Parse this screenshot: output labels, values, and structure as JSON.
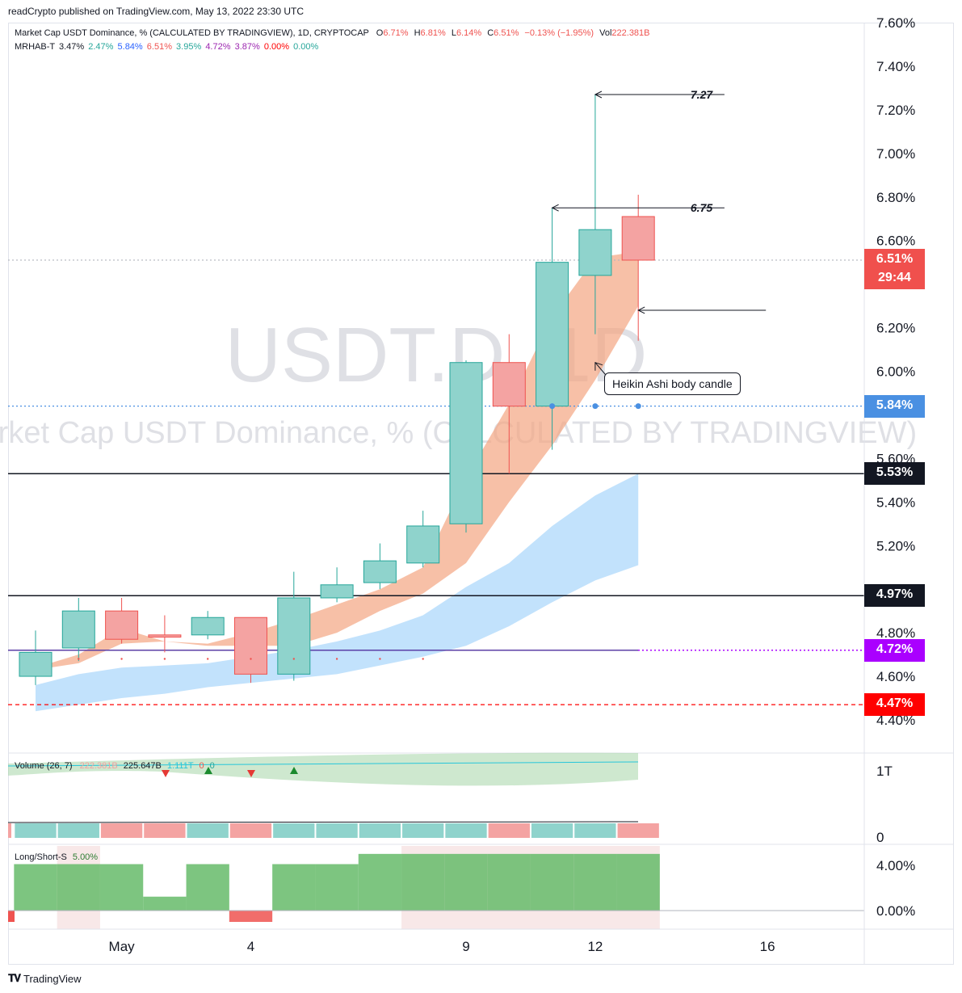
{
  "publisher_line": "readCrypto published on TradingView.com, May 13, 2022 23:30 UTC",
  "legend": {
    "title": "Market Cap USDT Dominance, % (CALCULATED BY TRADINGVIEW), 1D, CRYPTOCAP",
    "o_label": "O",
    "o_value": "6.71%",
    "h_label": "H",
    "h_value": "6.81%",
    "l_label": "L",
    "l_value": "6.14%",
    "c_label": "C",
    "c_value": "6.51%",
    "change": "−0.13% (−1.95%)",
    "vol_label": "Vol",
    "vol_value": "222.381B",
    "indicator_name": "MRHAB-T",
    "indicator_values": [
      "3.47%",
      "2.47%",
      "5.84%",
      "6.51%",
      "3.95%",
      "4.72%",
      "3.87%",
      "0.00%",
      "0.00%"
    ],
    "indicator_colors": [
      "#131722",
      "#26a69a",
      "#2962ff",
      "#ef5350",
      "#26a69a",
      "#9c27b0",
      "#9c27b0",
      "#ff0000",
      "#26a69a"
    ]
  },
  "watermark": {
    "symbol": "USDT.D, 1D",
    "name": "Market Cap USDT Dominance, % (CALCULATED BY TRADINGVIEW)"
  },
  "volume_legend": {
    "name": "Volume (26, 7)",
    "values": [
      "222.381B",
      "225.647B",
      "1.111T",
      "0",
      "0"
    ]
  },
  "ls_legend": {
    "name": "Long/Short-S",
    "value": "5.00%"
  },
  "price_tags": [
    {
      "text": "6.51%",
      "sub": "29:44",
      "color": "#f0504d"
    },
    {
      "text": "5.84%",
      "color": "#4a90e2"
    },
    {
      "text": "5.53%",
      "color": "#131722"
    },
    {
      "text": "4.97%",
      "color": "#131722"
    },
    {
      "text": "4.72%",
      "color": "#aa00ff"
    },
    {
      "text": "4.47%",
      "color": "#ff0000"
    }
  ],
  "annotations": {
    "high_label": "7.27",
    "mid_label": "6.75",
    "box_text": "Heikin Ashi body candle"
  },
  "footer": {
    "brand": "TradingView"
  },
  "chart_data": {
    "type": "candlestick",
    "x_ticks": [
      "May",
      "4",
      "9",
      "12",
      "16"
    ],
    "y_ticks": [
      "7.60%",
      "7.40%",
      "7.20%",
      "7.00%",
      "6.80%",
      "6.60%",
      "6.20%",
      "6.00%",
      "5.60%",
      "5.40%",
      "5.20%",
      "4.80%",
      "4.60%",
      "4.40%"
    ],
    "y_range": [
      4.33,
      7.63
    ],
    "candles": [
      {
        "o": 4.71,
        "h": 4.81,
        "l": 4.56,
        "c": 4.6,
        "dir": "up"
      },
      {
        "o": 4.73,
        "h": 4.96,
        "l": 4.67,
        "c": 4.9,
        "dir": "up"
      },
      {
        "o": 4.9,
        "h": 4.96,
        "l": 4.75,
        "c": 4.77,
        "dir": "down"
      },
      {
        "o": 4.79,
        "h": 4.88,
        "l": 4.71,
        "c": 4.78,
        "dir": "down"
      },
      {
        "o": 4.79,
        "h": 4.9,
        "l": 4.77,
        "c": 4.87,
        "dir": "up"
      },
      {
        "o": 4.87,
        "h": 4.87,
        "l": 4.57,
        "c": 4.61,
        "dir": "down"
      },
      {
        "o": 4.61,
        "h": 5.08,
        "l": 4.58,
        "c": 4.96,
        "dir": "up"
      },
      {
        "o": 4.96,
        "h": 5.1,
        "l": 4.94,
        "c": 5.02,
        "dir": "up"
      },
      {
        "o": 5.03,
        "h": 5.21,
        "l": 5.0,
        "c": 5.13,
        "dir": "up"
      },
      {
        "o": 5.12,
        "h": 5.36,
        "l": 5.1,
        "c": 5.29,
        "dir": "up"
      },
      {
        "o": 5.3,
        "h": 6.05,
        "l": 5.26,
        "c": 6.04,
        "dir": "up"
      },
      {
        "o": 6.04,
        "h": 6.17,
        "l": 5.53,
        "c": 5.84,
        "dir": "down"
      },
      {
        "o": 5.84,
        "h": 6.75,
        "l": 5.64,
        "c": 6.5,
        "dir": "up"
      },
      {
        "o": 6.44,
        "h": 7.27,
        "l": 6.17,
        "c": 6.65,
        "dir": "up"
      },
      {
        "o": 6.71,
        "h": 6.81,
        "l": 6.14,
        "c": 6.51,
        "dir": "down"
      }
    ],
    "horizontal_levels": [
      {
        "value": 6.51,
        "style": "dotted",
        "color": "#b2b5be"
      },
      {
        "value": 5.84,
        "style": "dotted",
        "color": "#4a90e2"
      },
      {
        "value": 5.53,
        "style": "solid",
        "color": "#131722"
      },
      {
        "value": 4.97,
        "style": "solid",
        "color": "#131722"
      },
      {
        "value": 4.72,
        "style": "solid",
        "color": "#5b3fa6"
      },
      {
        "value": 4.47,
        "style": "dashed",
        "color": "#ff0000"
      }
    ],
    "orange_band": {
      "upper": [
        4.64,
        4.7,
        4.82,
        4.76,
        4.75,
        4.8,
        4.86,
        4.93,
        5.0,
        5.1,
        5.51,
        5.85,
        6.25,
        6.52,
        6.55
      ],
      "lower": [
        4.63,
        4.66,
        4.75,
        4.76,
        4.74,
        4.74,
        4.74,
        4.8,
        4.9,
        4.98,
        5.12,
        5.4,
        5.66,
        5.96,
        6.3
      ]
    },
    "blue_band": {
      "upper": [
        4.56,
        4.61,
        4.64,
        4.65,
        4.66,
        4.69,
        4.72,
        4.76,
        4.81,
        4.88,
        5.01,
        5.12,
        5.29,
        5.43,
        5.53
      ],
      "lower": [
        4.44,
        4.47,
        4.5,
        4.52,
        4.55,
        4.57,
        4.59,
        4.61,
        4.65,
        4.69,
        4.74,
        4.83,
        4.94,
        5.04,
        5.11
      ]
    },
    "volume_axis_ticks": [
      "1T",
      "0"
    ],
    "volume_colors": [
      "up",
      "up",
      "down",
      "down",
      "up",
      "down",
      "up",
      "up",
      "up",
      "up",
      "up",
      "down",
      "up",
      "up",
      "down"
    ],
    "long_short": {
      "axis_ticks": [
        "4.00%",
        "0.00%"
      ],
      "values": [
        5.0,
        5.0,
        5.0,
        1.5,
        5.0,
        -1.0,
        5.0,
        5.0,
        9.0,
        9.0,
        9.0,
        9.0,
        9.0,
        9.0,
        9.0
      ]
    }
  }
}
